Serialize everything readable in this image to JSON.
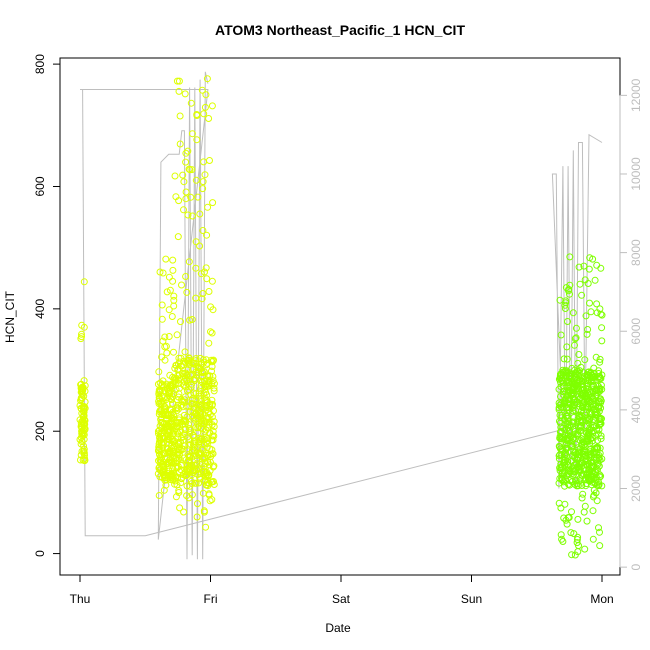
{
  "chart_data": {
    "type": "scatter",
    "title": "ATOM3 Northeast_Pacific_1 HCN_CIT",
    "xlabel": "Date",
    "ylabel": "HCN_CIT",
    "x_ticks": [
      "Thu",
      "Fri",
      "Sat",
      "Sun",
      "Mon"
    ],
    "xlim_days": [
      0,
      4
    ],
    "ylim": [
      -35,
      810
    ],
    "y_ticks": [
      0,
      200,
      400,
      600,
      800
    ],
    "y2lim": [
      -200,
      12950
    ],
    "y2_ticks": [
      0,
      2000,
      4000,
      6000,
      8000,
      10000,
      12000
    ],
    "grid": false,
    "colors": {
      "points_early": "#ddff00",
      "points_late": "#7fff00",
      "altitude_line": "#bebebe"
    },
    "altitude_series": {
      "name": "",
      "points": [
        [
          0.0,
          12150
        ],
        [
          0.02,
          12150
        ],
        [
          0.04,
          800
        ],
        [
          0.5,
          800
        ],
        [
          3.7,
          3500
        ],
        [
          3.62,
          10000
        ],
        [
          3.65,
          10000
        ],
        [
          3.67,
          2000
        ],
        [
          3.7,
          10200
        ],
        [
          3.72,
          2200
        ],
        [
          3.74,
          10200
        ],
        [
          3.76,
          2500
        ],
        [
          3.78,
          10600
        ],
        [
          3.8,
          2000
        ],
        [
          3.82,
          10800
        ],
        [
          3.85,
          10800
        ],
        [
          3.87,
          3500
        ],
        [
          3.9,
          11000
        ],
        [
          4.0,
          10800
        ]
      ],
      "early_points": [
        [
          0.0,
          12150
        ],
        [
          0.98,
          12150
        ],
        [
          0.6,
          700
        ],
        [
          0.62,
          10300
        ],
        [
          0.68,
          10500
        ],
        [
          0.76,
          10500
        ],
        [
          0.78,
          11100
        ],
        [
          0.8,
          11100
        ],
        [
          0.82,
          200
        ],
        [
          0.84,
          12200
        ],
        [
          0.86,
          300
        ],
        [
          0.88,
          12200
        ],
        [
          0.9,
          200
        ],
        [
          0.92,
          12400
        ],
        [
          0.94,
          200
        ],
        [
          0.96,
          12600
        ],
        [
          0.98,
          12300
        ]
      ]
    },
    "hcn_clusters": [
      {
        "x_start": 0.0,
        "x_end": 0.04,
        "y_low": 125,
        "y_high": 445,
        "core_low": 150,
        "core_high": 280,
        "count": 90,
        "color": "#ddff00"
      },
      {
        "x_start": 0.6,
        "x_end": 0.72,
        "y_low": 90,
        "y_high": 495,
        "core_low": 120,
        "core_high": 280,
        "count": 260,
        "color": "#ddff00"
      },
      {
        "x_start": 0.72,
        "x_end": 1.03,
        "y_low": 40,
        "y_high": 780,
        "core_low": 110,
        "core_high": 320,
        "count": 520,
        "color": "#ddff00"
      },
      {
        "x_start": 3.67,
        "x_end": 4.0,
        "y_low": -5,
        "y_high": 485,
        "core_low": 110,
        "core_high": 300,
        "count": 700,
        "color": "#7fff00"
      }
    ]
  }
}
